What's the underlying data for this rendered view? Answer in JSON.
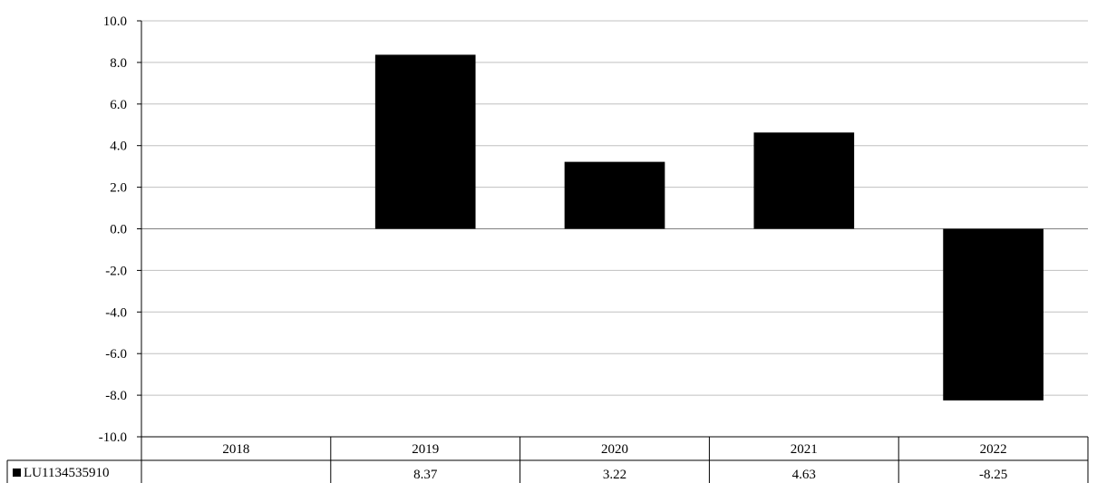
{
  "chart_data": {
    "type": "bar",
    "title": "",
    "xlabel": "",
    "ylabel": "",
    "categories": [
      "2018",
      "2019",
      "2020",
      "2021",
      "2022"
    ],
    "series": [
      {
        "name": "LU1134535910",
        "values": [
          null,
          8.37,
          3.22,
          4.63,
          -8.25
        ],
        "value_labels": [
          "",
          "8.37",
          "3.22",
          "4.63",
          "-8.25"
        ],
        "color": "#000000"
      }
    ],
    "ylim": [
      -10,
      10
    ],
    "yticks": [
      "10.0",
      "8.0",
      "6.0",
      "4.0",
      "2.0",
      "0.0",
      "-2.0",
      "-4.0",
      "-6.0",
      "-8.0",
      "-10.0"
    ],
    "ytick_values": [
      10,
      8,
      6,
      4,
      2,
      0,
      -2,
      -4,
      -6,
      -8,
      -10
    ],
    "grid": true,
    "legend": "data-table-left",
    "gridline_color": "#c0c0c0",
    "zero_line_color": "#808080"
  }
}
